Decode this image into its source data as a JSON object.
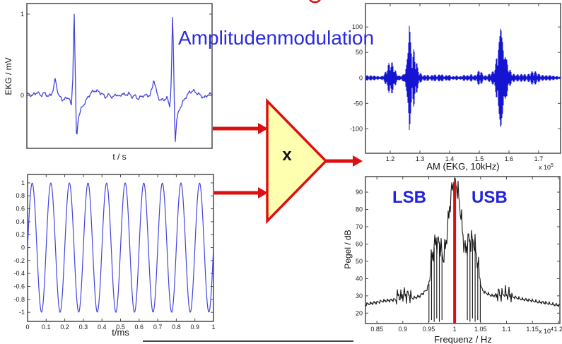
{
  "title": {
    "text": "Amplitudenmodulation",
    "color": "#2a2ae0"
  },
  "multiplier": {
    "symbol": "x",
    "fill": "#ffffb0",
    "border": "#dc1010"
  },
  "sideband_labels": {
    "lsb": "LSB",
    "usb": "USB",
    "color": "#2222e0"
  },
  "colors": {
    "trace_blue": "#4444dd",
    "am_blue": "#1414d2",
    "spectrum_black": "#161616",
    "accent_red": "#dc1010",
    "frame_gray": "#4a4a4a",
    "tick_text": "#1a1a1a"
  },
  "chart_data": [
    {
      "id": "ekg",
      "type": "line",
      "xlabel": "t / s",
      "ylabel": "EKG / mV",
      "xlim": [
        0,
        1
      ],
      "ylim": [
        -0.65,
        1.13
      ],
      "yticks": [
        [
          1,
          "1"
        ],
        [
          0,
          "0"
        ]
      ],
      "xticks": [],
      "description": "EKG trace in mV with two heartbeats; R peaks ~1.1 mV at normalized t = 0.255 and 0.787, P waves ~0.21 mV, S dips to ~-0.6 mV",
      "keypoints": [
        [
          0,
          0.02
        ],
        [
          0.03,
          0
        ],
        [
          0.055,
          0.04
        ],
        [
          0.075,
          0
        ],
        [
          0.095,
          0.03
        ],
        [
          0.115,
          -0.01
        ],
        [
          0.132,
          0.01
        ],
        [
          0.145,
          0.1
        ],
        [
          0.152,
          0.21
        ],
        [
          0.162,
          0.1
        ],
        [
          0.172,
          0
        ],
        [
          0.19,
          -0.05
        ],
        [
          0.21,
          -0.04
        ],
        [
          0.228,
          -0.02
        ],
        [
          0.24,
          -0.14
        ],
        [
          0.248,
          0.2
        ],
        [
          0.255,
          1.09
        ],
        [
          0.262,
          0.2
        ],
        [
          0.268,
          -0.57
        ],
        [
          0.277,
          -0.28
        ],
        [
          0.29,
          -0.18
        ],
        [
          0.305,
          -0.12
        ],
        [
          0.325,
          -0.04
        ],
        [
          0.345,
          0.03
        ],
        [
          0.365,
          0.06
        ],
        [
          0.385,
          0.05
        ],
        [
          0.405,
          0.02
        ],
        [
          0.425,
          -0.02
        ],
        [
          0.445,
          0.01
        ],
        [
          0.465,
          -0.03
        ],
        [
          0.48,
          0.02
        ],
        [
          0.5,
          -0.02
        ],
        [
          0.515,
          0.03
        ],
        [
          0.53,
          0
        ],
        [
          0.55,
          0.03
        ],
        [
          0.565,
          -0.02
        ],
        [
          0.58,
          0
        ],
        [
          0.6,
          -0.04
        ],
        [
          0.615,
          -0.02
        ],
        [
          0.63,
          0
        ],
        [
          0.665,
          0
        ],
        [
          0.678,
          0.1
        ],
        [
          0.685,
          0.21
        ],
        [
          0.695,
          0.1
        ],
        [
          0.705,
          0
        ],
        [
          0.72,
          -0.06
        ],
        [
          0.74,
          -0.05
        ],
        [
          0.758,
          -0.03
        ],
        [
          0.772,
          -0.14
        ],
        [
          0.78,
          0.2
        ],
        [
          0.787,
          1.05
        ],
        [
          0.794,
          0.2
        ],
        [
          0.8,
          -0.62
        ],
        [
          0.809,
          -0.3
        ],
        [
          0.822,
          -0.18
        ],
        [
          0.838,
          -0.1
        ],
        [
          0.858,
          -0.02
        ],
        [
          0.878,
          0.04
        ],
        [
          0.898,
          0.06
        ],
        [
          0.918,
          0.03
        ],
        [
          0.938,
          0
        ],
        [
          0.958,
          -0.03
        ],
        [
          0.978,
          0.01
        ],
        [
          1,
          0.02
        ]
      ]
    },
    {
      "id": "carrier",
      "type": "line",
      "xlabel": "t/ms",
      "ylabel": "",
      "xlim": [
        0,
        1
      ],
      "ylim": [
        -1.14,
        1.13
      ],
      "yticks": [
        [
          1,
          "1"
        ],
        [
          0.8,
          "0.8"
        ],
        [
          0.6,
          "0.6"
        ],
        [
          0.4,
          "0.4"
        ],
        [
          0.2,
          "0.2"
        ],
        [
          0,
          "0"
        ],
        [
          -0.2,
          "-0.2"
        ],
        [
          -0.4,
          "-0.4"
        ],
        [
          -0.6,
          "-0.6"
        ],
        [
          -0.8,
          "-0.8"
        ],
        [
          -1,
          "-1"
        ]
      ],
      "xticks": [
        [
          0,
          "0"
        ],
        [
          0.1,
          "0.1"
        ],
        [
          0.2,
          "0.2"
        ],
        [
          0.3,
          "0.3"
        ],
        [
          0.4,
          "0.4"
        ],
        [
          0.5,
          "0.5"
        ],
        [
          0.6,
          "0.6"
        ],
        [
          0.7,
          "0.7"
        ],
        [
          0.8,
          "0.8"
        ],
        [
          0.9,
          "0.9"
        ],
        [
          1,
          "1"
        ]
      ],
      "sine": {
        "amplitude": 1,
        "cycles": 10
      },
      "description": "10 kHz carrier: sin(2*pi*10*t), 10 full cycles over 1 ms, amplitude 1"
    },
    {
      "id": "am",
      "type": "line",
      "xlabel": "AM (EKG, 10kHz)",
      "ylabel": "",
      "scale": {
        "base": "x 10",
        "exp": "5"
      },
      "xlim": [
        1.1167,
        1.774
      ],
      "ylim": [
        -148,
        146
      ],
      "yticks": [
        [
          100,
          "100"
        ],
        [
          50,
          "50"
        ],
        [
          0,
          "0"
        ],
        [
          -50,
          "-50"
        ],
        [
          -100,
          "-100"
        ]
      ],
      "xticks": [
        [
          1.2,
          "1.2"
        ],
        [
          1.3,
          "1.3"
        ],
        [
          1.4,
          "1.4"
        ],
        [
          1.5,
          "1.5"
        ],
        [
          1.6,
          "1.6"
        ],
        [
          1.7,
          "1.7"
        ]
      ],
      "description": "DSB amplitude-modulated waveform; envelope follows |EKG|, bursts peak near +/-140 at sample 1.265e5 and 1.565e5",
      "envelope_keypoints": [
        [
          0,
          5
        ],
        [
          0.05,
          6
        ],
        [
          0.08,
          4
        ],
        [
          0.1,
          12
        ],
        [
          0.115,
          28
        ],
        [
          0.13,
          36
        ],
        [
          0.145,
          25
        ],
        [
          0.16,
          10
        ],
        [
          0.175,
          5
        ],
        [
          0.195,
          10
        ],
        [
          0.21,
          35
        ],
        [
          0.218,
          80
        ],
        [
          0.224,
          142
        ],
        [
          0.231,
          90
        ],
        [
          0.238,
          50
        ],
        [
          0.248,
          62
        ],
        [
          0.259,
          40
        ],
        [
          0.269,
          20
        ],
        [
          0.281,
          10
        ],
        [
          0.3,
          6
        ],
        [
          0.315,
          10
        ],
        [
          0.33,
          5
        ],
        [
          0.35,
          11
        ],
        [
          0.365,
          5
        ],
        [
          0.385,
          9
        ],
        [
          0.405,
          4
        ],
        [
          0.425,
          8
        ],
        [
          0.445,
          4
        ],
        [
          0.465,
          7
        ],
        [
          0.485,
          4
        ],
        [
          0.505,
          7
        ],
        [
          0.525,
          5
        ],
        [
          0.545,
          8
        ],
        [
          0.558,
          5
        ],
        [
          0.572,
          12
        ],
        [
          0.585,
          26
        ],
        [
          0.598,
          14
        ],
        [
          0.61,
          6
        ],
        [
          0.63,
          8
        ],
        [
          0.655,
          14
        ],
        [
          0.668,
          32
        ],
        [
          0.678,
          60
        ],
        [
          0.688,
          90
        ],
        [
          0.695,
          142
        ],
        [
          0.702,
          100
        ],
        [
          0.709,
          55
        ],
        [
          0.717,
          70
        ],
        [
          0.727,
          45
        ],
        [
          0.738,
          26
        ],
        [
          0.75,
          13
        ],
        [
          0.765,
          8
        ],
        [
          0.79,
          7
        ],
        [
          0.81,
          9
        ],
        [
          0.828,
          7
        ],
        [
          0.845,
          15
        ],
        [
          0.862,
          22
        ],
        [
          0.878,
          15
        ],
        [
          0.895,
          7
        ],
        [
          0.92,
          5
        ],
        [
          0.95,
          6
        ],
        [
          0.98,
          5
        ],
        [
          1,
          4
        ]
      ]
    },
    {
      "id": "spectrum",
      "type": "line",
      "xlabel": "Frequenz / Hz",
      "ylabel": "Pegel / dB",
      "scale": {
        "base": "x 10",
        "exp": "4"
      },
      "xlim": [
        0.828,
        1.203
      ],
      "ylim": [
        14,
        99
      ],
      "yticks": [
        [
          90,
          "90"
        ],
        [
          80,
          "80"
        ],
        [
          70,
          "70"
        ],
        [
          60,
          "60"
        ],
        [
          50,
          "50"
        ],
        [
          40,
          "40"
        ],
        [
          30,
          "30"
        ],
        [
          20,
          "20"
        ]
      ],
      "xticks": [
        [
          0.85,
          "0.85"
        ],
        [
          0.9,
          "0.9"
        ],
        [
          0.95,
          "0.95"
        ],
        [
          1,
          "1"
        ],
        [
          1.05,
          "1.05"
        ],
        [
          1.1,
          "1.1"
        ],
        [
          1.15,
          "1.15"
        ],
        [
          1.2,
          "1.2"
        ]
      ],
      "carrier_line": {
        "freq": 1.0,
        "top_dB": 96,
        "color": "#dc1010"
      },
      "description": "Magnitude spectrum of the AM signal: carrier at 10 kHz (96 dB, red marker), LSB and USB shoulders ~60 dB at 9.65/10.35 kHz, noise floor falling to ~25 dB",
      "keypoints": [
        [
          0.828,
          25
        ],
        [
          0.845,
          26
        ],
        [
          0.862,
          27
        ],
        [
          0.878,
          27.5
        ],
        [
          0.886,
          28
        ],
        [
          0.892,
          30.5
        ],
        [
          0.897,
          29
        ],
        [
          0.902,
          31.5
        ],
        [
          0.907,
          30
        ],
        [
          0.912,
          31
        ],
        [
          0.917,
          28.5
        ],
        [
          0.925,
          29
        ],
        [
          0.933,
          30
        ],
        [
          0.941,
          32
        ],
        [
          0.947,
          34
        ],
        [
          0.9505,
          37
        ],
        [
          0.953,
          46
        ],
        [
          0.956,
          52
        ],
        [
          0.959,
          56
        ],
        [
          0.962,
          60
        ],
        [
          0.9645,
          63
        ],
        [
          0.967,
          59
        ],
        [
          0.9695,
          62
        ],
        [
          0.972,
          60
        ],
        [
          0.9745,
          56
        ],
        [
          0.977,
          52
        ],
        [
          0.98,
          54
        ],
        [
          0.983,
          60
        ],
        [
          0.986,
          68
        ],
        [
          0.989,
          77
        ],
        [
          0.992,
          86
        ],
        [
          0.995,
          92
        ],
        [
          0.998,
          95.5
        ],
        [
          1,
          96
        ],
        [
          1.002,
          95.5
        ],
        [
          1.005,
          92
        ],
        [
          1.008,
          87
        ],
        [
          1.011,
          80
        ],
        [
          1.014,
          71
        ],
        [
          1.017,
          62
        ],
        [
          1.02,
          56
        ],
        [
          1.023,
          58
        ],
        [
          1.026,
          62
        ],
        [
          1.029,
          63
        ],
        [
          1.032,
          61
        ],
        [
          1.035,
          63
        ],
        [
          1.038,
          60
        ],
        [
          1.041,
          56
        ],
        [
          1.044,
          50
        ],
        [
          1.047,
          44
        ],
        [
          1.0495,
          38
        ],
        [
          1.052,
          34
        ],
        [
          1.058,
          32
        ],
        [
          1.065,
          31
        ],
        [
          1.072,
          30
        ],
        [
          1.08,
          30.5
        ],
        [
          1.086,
          31.5
        ],
        [
          1.091,
          30
        ],
        [
          1.096,
          32
        ],
        [
          1.101,
          30.5
        ],
        [
          1.106,
          31
        ],
        [
          1.111,
          29.5
        ],
        [
          1.118,
          29
        ],
        [
          1.13,
          28
        ],
        [
          1.145,
          27.5
        ],
        [
          1.16,
          26.5
        ],
        [
          1.175,
          26
        ],
        [
          1.19,
          25
        ],
        [
          1.203,
          24.5
        ]
      ],
      "notch_freqs": [
        [
          0.9505,
          15
        ],
        [
          0.9555,
          16
        ],
        [
          0.9605,
          15
        ],
        [
          0.9655,
          17
        ],
        [
          0.9705,
          15
        ],
        [
          0.9755,
          16
        ],
        [
          1.0245,
          16
        ],
        [
          1.0295,
          15
        ],
        [
          1.0345,
          17
        ],
        [
          1.0395,
          15
        ],
        [
          1.0445,
          16
        ],
        [
          1.0495,
          15
        ]
      ]
    }
  ]
}
